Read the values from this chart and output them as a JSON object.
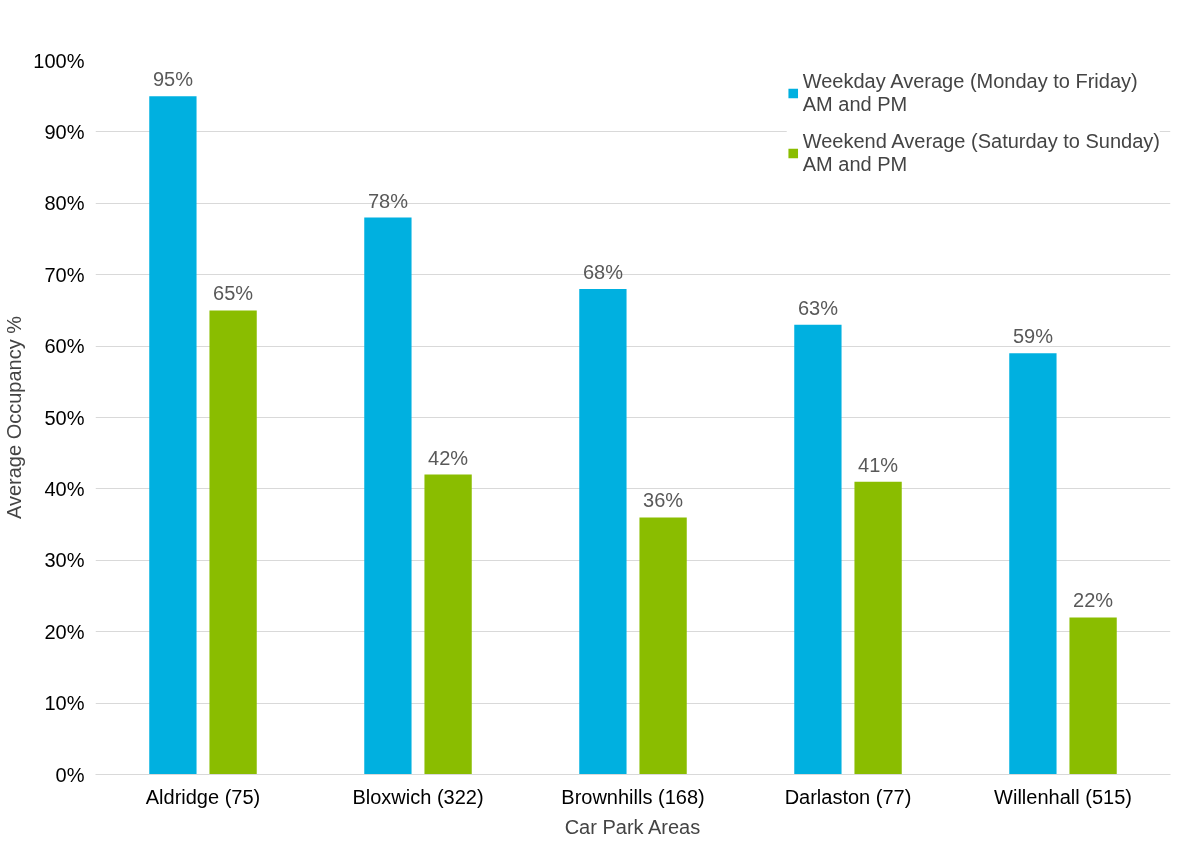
{
  "chart_data": {
    "type": "bar",
    "xlabel": "Car Park Areas",
    "ylabel": "Average Occupancy %",
    "categories": [
      "Aldridge (75)",
      "Bloxwich (322)",
      "Brownhills (168)",
      "Darlaston (77)",
      "Willenhall (515)"
    ],
    "series": [
      {
        "name": "Weekday Average (Monday to Friday) AM and PM",
        "color": "#00b0e0",
        "values": [
          95,
          78,
          68,
          63,
          59
        ],
        "value_labels": [
          "95%",
          "78%",
          "68%",
          "63%",
          "59%"
        ]
      },
      {
        "name": "Weekend Average (Saturday to Sunday) AM and PM",
        "color": "#8abd00",
        "values": [
          65,
          42,
          36,
          41,
          22
        ],
        "value_labels": [
          "65%",
          "42%",
          "36%",
          "41%",
          "22%"
        ]
      }
    ],
    "ylim": [
      0,
      100
    ],
    "yticks": [
      {
        "value": 0,
        "label": "0%"
      },
      {
        "value": 10,
        "label": "10%"
      },
      {
        "value": 20,
        "label": "20%"
      },
      {
        "value": 30,
        "label": "30%"
      },
      {
        "value": 40,
        "label": "40%"
      },
      {
        "value": 50,
        "label": "50%"
      },
      {
        "value": 60,
        "label": "60%"
      },
      {
        "value": 70,
        "label": "70%"
      },
      {
        "value": 80,
        "label": "80%"
      },
      {
        "value": 90,
        "label": "90%"
      },
      {
        "value": 100,
        "label": "100%"
      }
    ],
    "grid": "y",
    "legend": "top right"
  }
}
